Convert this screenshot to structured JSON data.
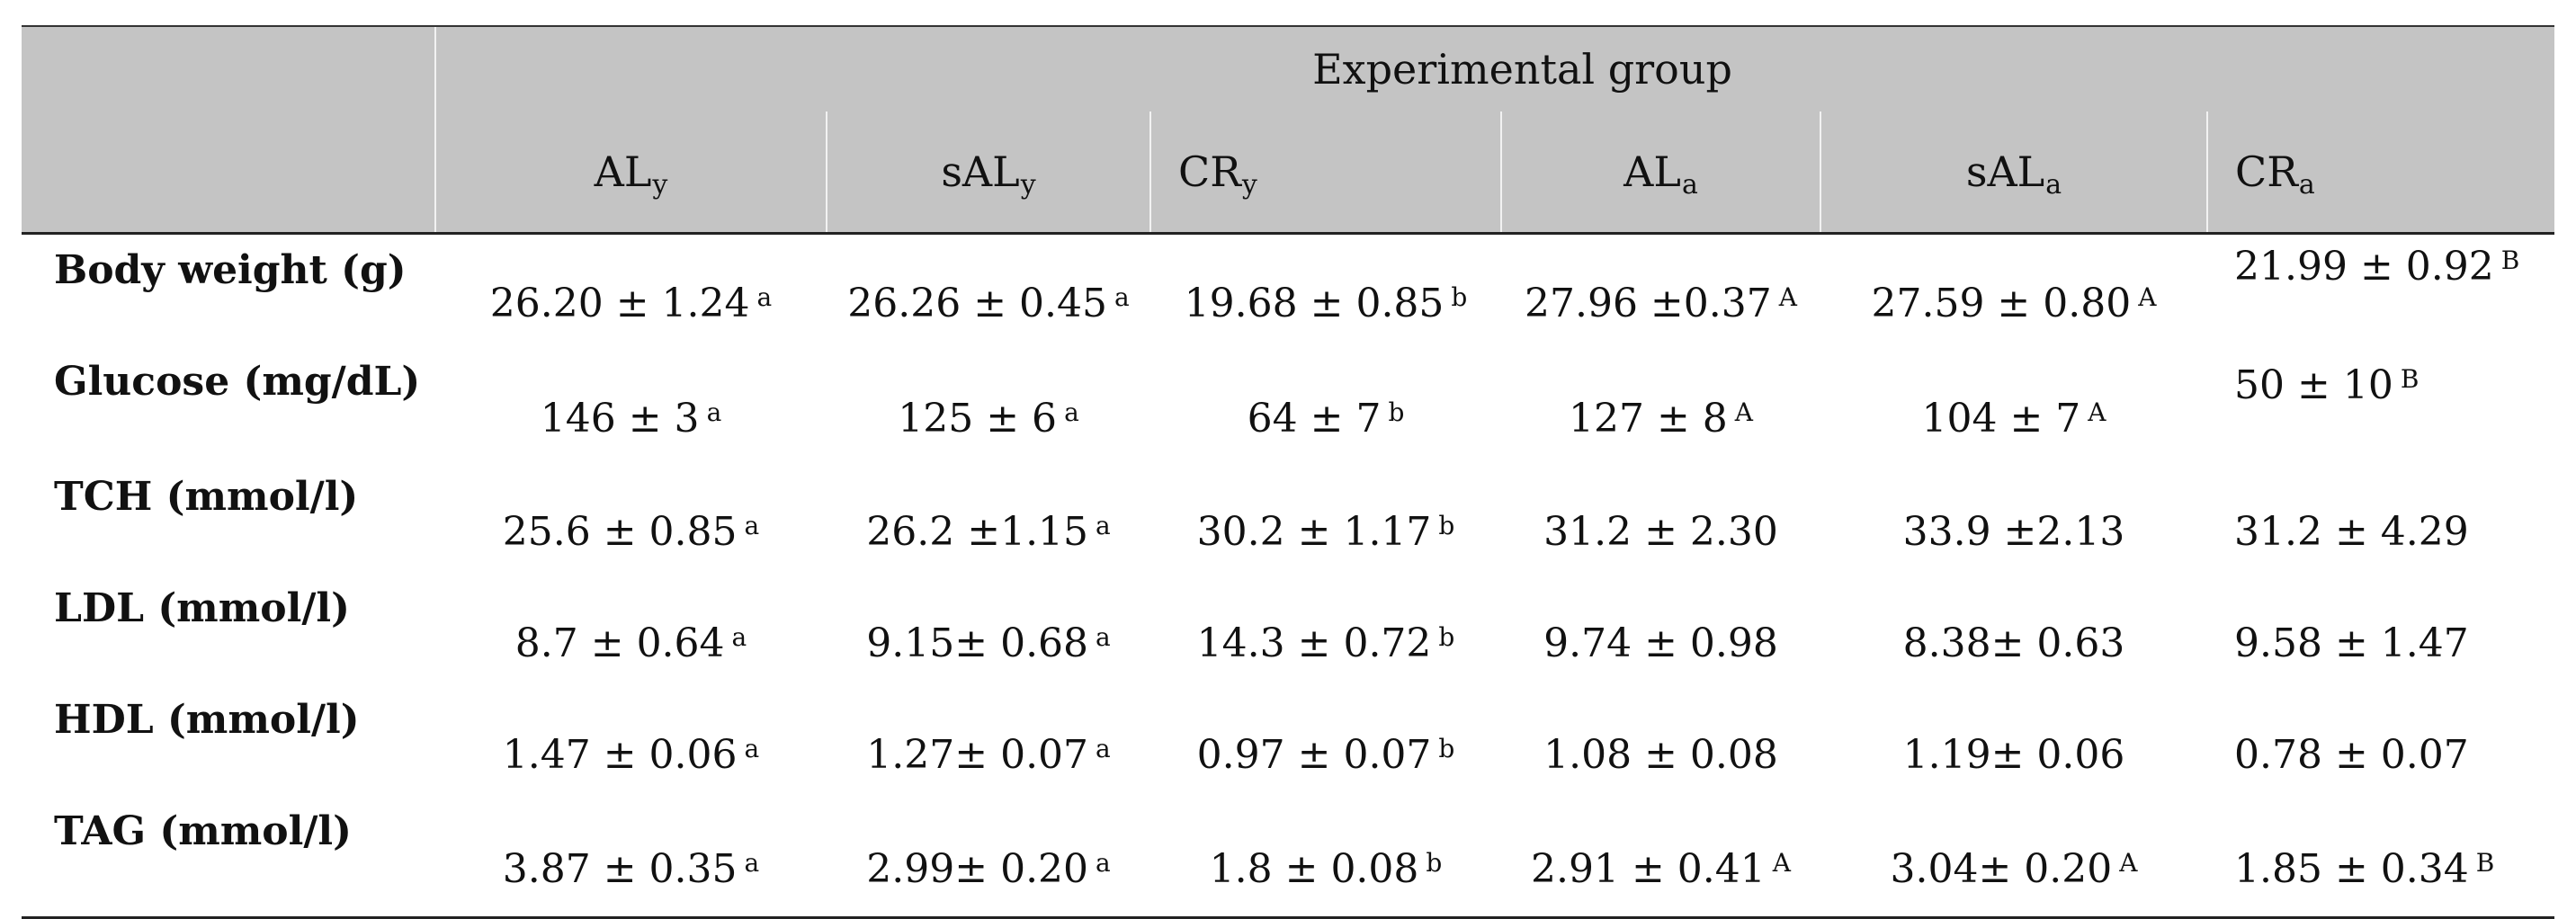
{
  "table": {
    "group_header": "Experimental group",
    "columns": [
      {
        "base": "AL",
        "sub": "y"
      },
      {
        "base": "sAL",
        "sub": "y"
      },
      {
        "base": "CR",
        "sub": "y"
      },
      {
        "base": "AL",
        "sub": "a"
      },
      {
        "base": "sAL",
        "sub": "a"
      },
      {
        "base": "CR",
        "sub": "a"
      }
    ],
    "rows": [
      {
        "label": "Body weight (g)",
        "cells": [
          {
            "value": "26.20 ± 1.24",
            "sig": "a"
          },
          {
            "value": "26.26 ± 0.45",
            "sig": "a"
          },
          {
            "value": "19.68 ± 0.85",
            "sig": "b"
          },
          {
            "value": "27.96 ±0.37",
            "sig": "A"
          },
          {
            "value": "27.59 ± 0.80",
            "sig": "A"
          },
          {
            "value": "21.99 ± 0.92",
            "sig": "B"
          }
        ]
      },
      {
        "label": "Glucose (mg/dL)",
        "cells": [
          {
            "value": "146 ± 3",
            "sig": "a"
          },
          {
            "value": "125 ± 6",
            "sig": "a"
          },
          {
            "value": "64 ± 7",
            "sig": "b"
          },
          {
            "value": "127 ± 8",
            "sig": "A"
          },
          {
            "value": "104 ± 7",
            "sig": "A"
          },
          {
            "value": "50 ± 10",
            "sig": "B"
          }
        ]
      },
      {
        "label": "TCH (mmol/l)",
        "cells": [
          {
            "value": "25.6 ± 0.85",
            "sig": "a"
          },
          {
            "value": "26.2 ±1.15",
            "sig": "a"
          },
          {
            "value": "30.2 ± 1.17",
            "sig": "b"
          },
          {
            "value": "31.2 ± 2.30",
            "sig": ""
          },
          {
            "value": "33.9 ±2.13",
            "sig": ""
          },
          {
            "value": "31.2 ± 4.29",
            "sig": ""
          }
        ]
      },
      {
        "label": "LDL (mmol/l)",
        "cells": [
          {
            "value": "8.7 ± 0.64",
            "sig": "a"
          },
          {
            "value": "9.15± 0.68",
            "sig": "a"
          },
          {
            "value": "14.3 ± 0.72",
            "sig": "b"
          },
          {
            "value": "9.74 ± 0.98",
            "sig": ""
          },
          {
            "value": "8.38± 0.63",
            "sig": ""
          },
          {
            "value": "9.58 ± 1.47",
            "sig": ""
          }
        ]
      },
      {
        "label": "HDL (mmol/l)",
        "cells": [
          {
            "value": "1.47 ± 0.06",
            "sig": "a"
          },
          {
            "value": "1.27± 0.07",
            "sig": "a"
          },
          {
            "value": "0.97 ± 0.07",
            "sig": "b"
          },
          {
            "value": "1.08 ± 0.08",
            "sig": ""
          },
          {
            "value": "1.19± 0.06",
            "sig": ""
          },
          {
            "value": "0.78 ± 0.07",
            "sig": ""
          }
        ]
      },
      {
        "label": "TAG (mmol/l)",
        "cells": [
          {
            "value": "3.87 ± 0.35",
            "sig": "a"
          },
          {
            "value": "2.99± 0.20",
            "sig": "a"
          },
          {
            "value": "1.8 ± 0.08",
            "sig": "b"
          },
          {
            "value": "2.91 ± 0.41",
            "sig": "A"
          },
          {
            "value": "3.04± 0.20",
            "sig": "A"
          },
          {
            "value": "1.85 ± 0.34",
            "sig": "B"
          }
        ]
      }
    ]
  },
  "colors": {
    "header_bg": "#c4c4c4",
    "rule": "#222222",
    "text": "#111111"
  }
}
